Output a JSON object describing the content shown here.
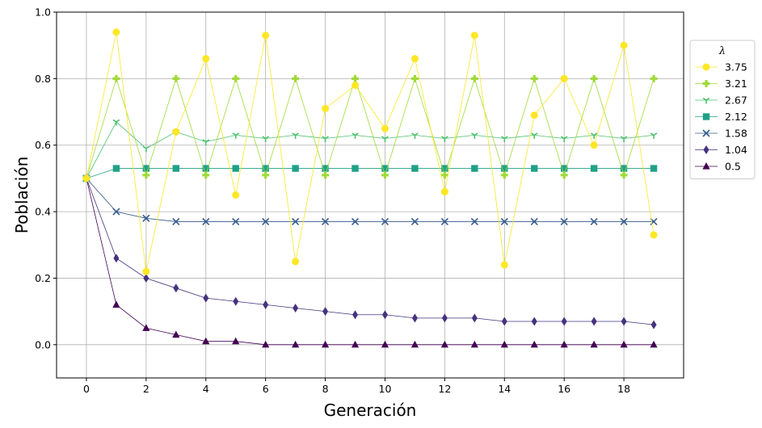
{
  "chart_data": {
    "type": "line",
    "title": "",
    "xlabel": "Generación",
    "ylabel": "Población",
    "xlim": [
      -1,
      20
    ],
    "ylim": [
      -0.1,
      1.0
    ],
    "xticks": [
      0,
      2,
      4,
      6,
      8,
      10,
      12,
      14,
      16,
      18
    ],
    "yticks": [
      0.0,
      0.2,
      0.4,
      0.6,
      0.8,
      1.0
    ],
    "xtick_labels": [
      "0",
      "2",
      "4",
      "6",
      "8",
      "10",
      "12",
      "14",
      "16",
      "18"
    ],
    "ytick_labels": [
      "0.0",
      "0.2",
      "0.4",
      "0.6",
      "0.8",
      "1.0"
    ],
    "grid": true,
    "legend": {
      "title": "λ",
      "placement": "right, outside plot area"
    },
    "x": [
      0,
      1,
      2,
      3,
      4,
      5,
      6,
      7,
      8,
      9,
      10,
      11,
      12,
      13,
      14,
      15,
      16,
      17,
      18,
      19
    ],
    "series": [
      {
        "name": "3.75",
        "color": "#fde725",
        "marker": "circle",
        "values": [
          0.5,
          0.94,
          0.22,
          0.64,
          0.86,
          0.45,
          0.93,
          0.25,
          0.71,
          0.78,
          0.65,
          0.86,
          0.46,
          0.93,
          0.24,
          0.69,
          0.8,
          0.6,
          0.9,
          0.33
        ]
      },
      {
        "name": "3.21",
        "color": "#a0da39",
        "marker": "plus",
        "values": [
          0.5,
          0.8,
          0.51,
          0.8,
          0.51,
          0.8,
          0.51,
          0.8,
          0.51,
          0.8,
          0.51,
          0.8,
          0.51,
          0.8,
          0.51,
          0.8,
          0.51,
          0.8,
          0.51,
          0.8
        ]
      },
      {
        "name": "2.67",
        "color": "#4ac16d",
        "marker": "tri-down",
        "values": [
          0.5,
          0.67,
          0.59,
          0.64,
          0.61,
          0.63,
          0.62,
          0.63,
          0.62,
          0.63,
          0.62,
          0.63,
          0.62,
          0.63,
          0.62,
          0.63,
          0.62,
          0.63,
          0.62,
          0.63
        ]
      },
      {
        "name": "2.12",
        "color": "#1fa187",
        "marker": "square",
        "values": [
          0.5,
          0.53,
          0.53,
          0.53,
          0.53,
          0.53,
          0.53,
          0.53,
          0.53,
          0.53,
          0.53,
          0.53,
          0.53,
          0.53,
          0.53,
          0.53,
          0.53,
          0.53,
          0.53,
          0.53
        ]
      },
      {
        "name": "1.58",
        "color": "#365c8d",
        "marker": "x",
        "values": [
          0.5,
          0.4,
          0.38,
          0.37,
          0.37,
          0.37,
          0.37,
          0.37,
          0.37,
          0.37,
          0.37,
          0.37,
          0.37,
          0.37,
          0.37,
          0.37,
          0.37,
          0.37,
          0.37,
          0.37
        ]
      },
      {
        "name": "1.04",
        "color": "#46327e",
        "marker": "thin-diamond",
        "values": [
          0.5,
          0.26,
          0.2,
          0.17,
          0.14,
          0.13,
          0.12,
          0.11,
          0.1,
          0.09,
          0.09,
          0.08,
          0.08,
          0.08,
          0.07,
          0.07,
          0.07,
          0.07,
          0.07,
          0.06
        ]
      },
      {
        "name": "0.5",
        "color": "#440154",
        "marker": "triangle-up",
        "values": [
          0.5,
          0.12,
          0.05,
          0.03,
          0.01,
          0.01,
          0.0,
          0.0,
          0.0,
          0.0,
          0.0,
          0.0,
          0.0,
          0.0,
          0.0,
          0.0,
          0.0,
          0.0,
          0.0,
          0.0
        ]
      }
    ]
  }
}
